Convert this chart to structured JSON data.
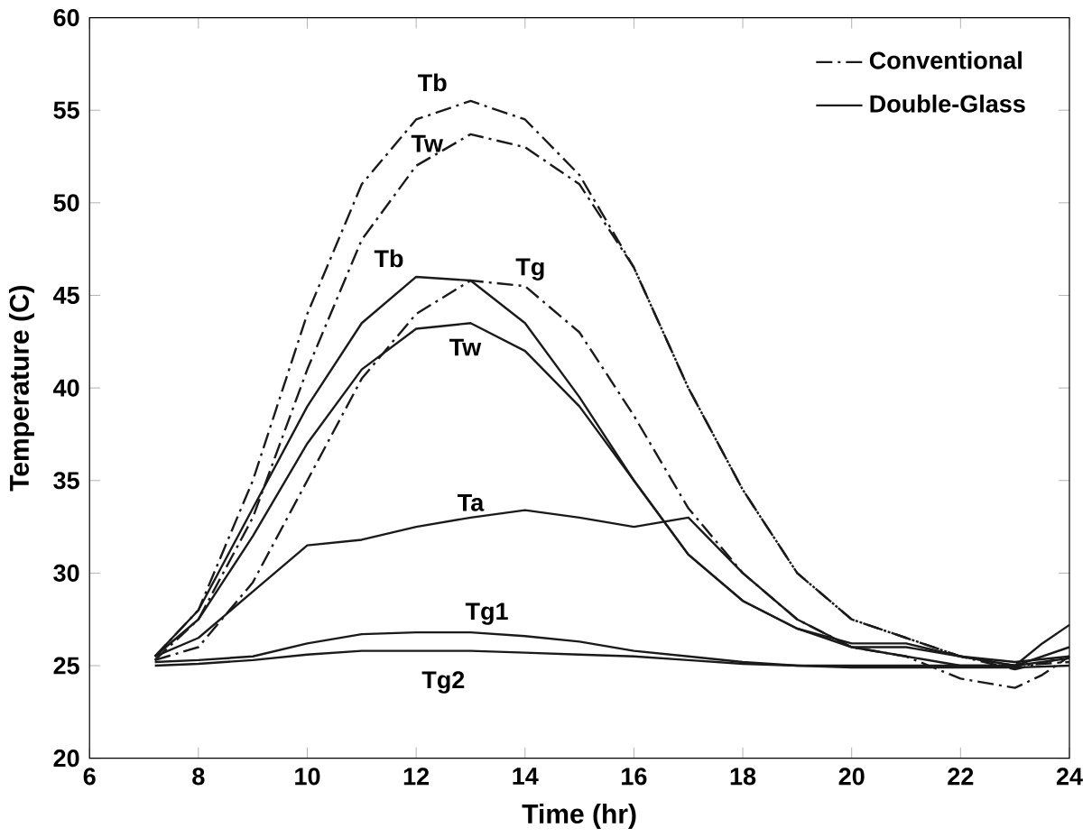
{
  "chart_data": {
    "type": "line",
    "xlabel": "Time (hr)",
    "ylabel": "Temperature (C)",
    "xlim": [
      6,
      24
    ],
    "xticks": [
      6,
      8,
      10,
      12,
      14,
      16,
      18,
      20,
      22,
      24
    ],
    "ylim": [
      20,
      60
    ],
    "yticks": [
      20,
      25,
      30,
      35,
      40,
      45,
      50,
      55,
      60
    ],
    "x": [
      7.2,
      8,
      9,
      10,
      11,
      12,
      13,
      14,
      15,
      16,
      17,
      18,
      19,
      20,
      21,
      22,
      23,
      24
    ],
    "legend": "top right",
    "grid": false,
    "marker": "none",
    "series": [
      {
        "name": "Conventional",
        "color": "#1a1a1a",
        "line_style": "dashed",
        "values": [
          25.5,
          28,
          35,
          44,
          51,
          54.5,
          55.5,
          54.5,
          51.5,
          46.5,
          40,
          34.5,
          30,
          27.5,
          26.5,
          25.5,
          24.8,
          25.5
        ]
      },
      {
        "color": "#1a1a1a",
        "line_style": "dashed",
        "values": [
          25.3,
          27.5,
          33,
          41,
          48,
          52,
          53.7,
          53,
          51,
          46.5,
          40,
          34.5,
          30,
          27.5,
          26.5,
          25.5,
          25,
          25.2
        ]
      },
      {
        "color": "#1a1a1a",
        "line_style": "dashed",
        "x": [
          7.2,
          8,
          9,
          10,
          11,
          12,
          13,
          14,
          15,
          16,
          17,
          18,
          19,
          20,
          21,
          22,
          23,
          23.5,
          24
        ],
        "values": [
          25.3,
          26,
          29.5,
          35,
          40.5,
          44,
          45.8,
          45.5,
          43,
          38.5,
          33.5,
          30,
          27.5,
          26,
          25.5,
          24.3,
          23.8,
          24.5,
          25.5
        ]
      },
      {
        "name": "Double-Glass",
        "color": "#1a1a1a",
        "line_style": "solid",
        "values": [
          25.5,
          28,
          33.5,
          39,
          43.5,
          46,
          45.8,
          43.5,
          39.5,
          35,
          31,
          28.5,
          27,
          26,
          26,
          25.5,
          25.2,
          25.5
        ]
      },
      {
        "color": "#1a1a1a",
        "line_style": "solid",
        "values": [
          25.5,
          27.5,
          32,
          37,
          41,
          43.2,
          43.5,
          42,
          39,
          35,
          31,
          28.5,
          27,
          26.2,
          26.2,
          25.5,
          25,
          26
        ]
      },
      {
        "color": "#1a1a1a",
        "line_style": "solid",
        "x": [
          7.2,
          8,
          9,
          10,
          11,
          12,
          13,
          14,
          15,
          16,
          17,
          18,
          19,
          20,
          21,
          22,
          23,
          23.5,
          24
        ],
        "values": [
          25.5,
          26.5,
          29,
          31.5,
          31.8,
          32.5,
          33,
          33.4,
          33,
          32.5,
          33,
          30,
          27.5,
          26,
          25.5,
          25,
          25,
          26.2,
          27.2
        ]
      },
      {
        "color": "#1a1a1a",
        "line_style": "solid",
        "values": [
          25.2,
          25.3,
          25.5,
          26.2,
          26.7,
          26.8,
          26.8,
          26.6,
          26.3,
          25.8,
          25.5,
          25.2,
          25,
          25,
          25,
          25,
          25,
          25.4
        ]
      },
      {
        "color": "#1a1a1a",
        "line_style": "solid",
        "values": [
          25,
          25.1,
          25.3,
          25.6,
          25.8,
          25.8,
          25.8,
          25.7,
          25.6,
          25.5,
          25.3,
          25.1,
          25,
          24.9,
          24.9,
          24.9,
          24.9,
          25
        ]
      }
    ],
    "annotations": [
      "Tb",
      "Tw",
      "Tb",
      "Tg",
      "Tw",
      "Ta",
      "Tg1",
      "Tg2"
    ]
  }
}
